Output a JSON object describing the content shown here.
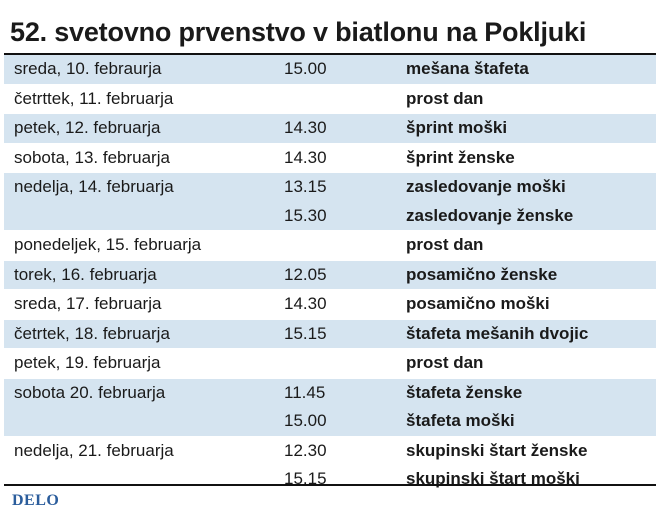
{
  "title": "52. svetovno prvenstvo v biatlonu na Pokljuki",
  "schedule": [
    {
      "shaded": true,
      "rows": [
        {
          "date": "sreda, 10. febraurja",
          "time": "15.00",
          "event": "mešana štafeta"
        }
      ]
    },
    {
      "shaded": false,
      "rows": [
        {
          "date": "četrttek, 11. februarja",
          "time": "",
          "event": "prost dan"
        }
      ]
    },
    {
      "shaded": true,
      "rows": [
        {
          "date": "petek, 12. februarja",
          "time": "14.30",
          "event": "šprint moški"
        }
      ]
    },
    {
      "shaded": false,
      "rows": [
        {
          "date": "sobota, 13. februarja",
          "time": "14.30",
          "event": "šprint ženske"
        }
      ]
    },
    {
      "shaded": true,
      "rows": [
        {
          "date": "nedelja, 14. februarja",
          "time": "13.15",
          "event": "zasledovanje moški"
        },
        {
          "date": "",
          "time": "15.30",
          "event": "zasledovanje ženske"
        }
      ]
    },
    {
      "shaded": false,
      "rows": [
        {
          "date": "ponedeljek, 15. februarja",
          "time": "",
          "event": "prost dan"
        }
      ]
    },
    {
      "shaded": true,
      "rows": [
        {
          "date": "torek, 16. februarja",
          "time": "12.05",
          "event": "posamično ženske"
        }
      ]
    },
    {
      "shaded": false,
      "rows": [
        {
          "date": "sreda, 17. februarja",
          "time": "14.30",
          "event": "posamično moški"
        }
      ]
    },
    {
      "shaded": true,
      "rows": [
        {
          "date": "četrtek, 18. februarja",
          "time": "15.15",
          "event": "štafeta mešanih dvojic"
        }
      ]
    },
    {
      "shaded": false,
      "rows": [
        {
          "date": "petek, 19. februarja",
          "time": "",
          "event": "prost dan"
        }
      ]
    },
    {
      "shaded": true,
      "rows": [
        {
          "date": "sobota 20. februarja",
          "time": "11.45",
          "event": "štafeta ženske"
        },
        {
          "date": "",
          "time": "15.00",
          "event": "štafeta moški"
        }
      ]
    },
    {
      "shaded": false,
      "rows": [
        {
          "date": "nedelja, 21. februarja",
          "time": "12.30",
          "event": "skupinski štart ženske"
        },
        {
          "date": "",
          "time": "15.15",
          "event": "skupinski štart moški"
        }
      ]
    }
  ],
  "footer": {
    "logo": "DELO"
  }
}
